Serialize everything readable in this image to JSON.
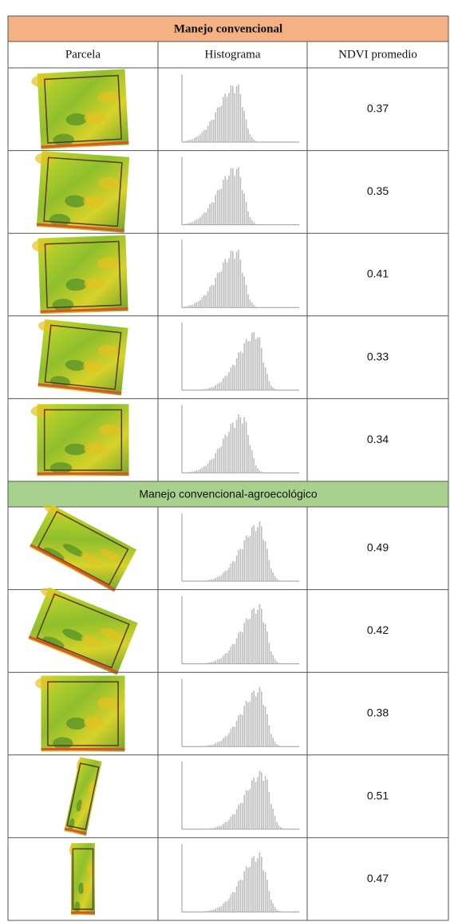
{
  "columns": [
    "Parcela",
    "Histograma",
    "NDVI promedio"
  ],
  "sections": [
    {
      "title": "Manejo convencional",
      "rows": [
        {
          "ndvi": 0.37
        },
        {
          "ndvi": 0.35
        },
        {
          "ndvi": 0.41
        },
        {
          "ndvi": 0.33
        },
        {
          "ndvi": 0.34
        }
      ]
    },
    {
      "title": "Manejo convencional-agroecológico",
      "rows": [
        {
          "ndvi": 0.49
        },
        {
          "ndvi": 0.42
        },
        {
          "ndvi": 0.38
        },
        {
          "ndvi": 0.51
        },
        {
          "ndvi": 0.47
        }
      ]
    }
  ]
}
